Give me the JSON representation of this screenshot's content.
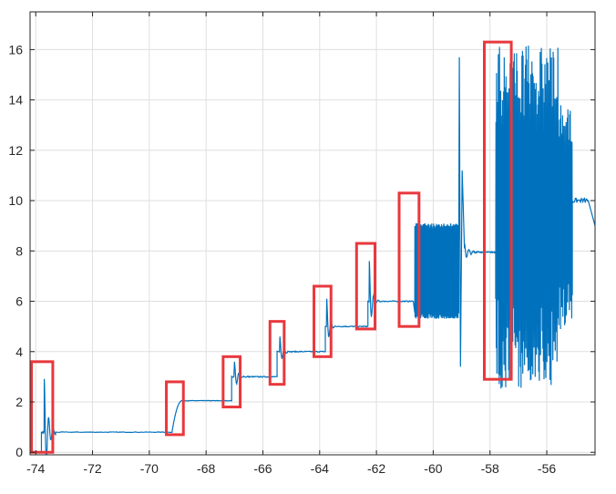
{
  "chart_data": {
    "type": "line",
    "title": "",
    "xlabel": "",
    "ylabel": "",
    "xlim": [
      -74.2,
      -54.3
    ],
    "ylim": [
      -0.1,
      17.5
    ],
    "grid": true,
    "xticks": [
      -74,
      -72,
      -70,
      -68,
      -66,
      -64,
      -62,
      -60,
      -58,
      -56
    ],
    "yticks": [
      0,
      2,
      4,
      6,
      8,
      10,
      12,
      14,
      16
    ],
    "xtick_labels": [
      "-74",
      "-72",
      "-70",
      "-68",
      "-66",
      "-64",
      "-62",
      "-60",
      "-58",
      "-56"
    ],
    "ytick_labels": [
      "0",
      "2",
      "4",
      "6",
      "8",
      "10",
      "12",
      "14",
      "16"
    ],
    "line_color": "#0072BD",
    "highlight_color": "#E8383D",
    "series": [
      {
        "segments": [
          {
            "x0": -74.2,
            "x1": -73.8,
            "value": 0.0,
            "noise": 0.02
          },
          {
            "x0": -73.8,
            "x1": -73.3,
            "value": 0.8,
            "spike_x": -73.7,
            "spike_peak": 2.9,
            "decay": 0.12
          },
          {
            "x0": -73.3,
            "x1": -69.2,
            "value": 0.8,
            "noise": 0.02
          },
          {
            "x0": -69.2,
            "x1": -68.85,
            "ramp_from": 0.8,
            "value": 2.05
          },
          {
            "x0": -68.85,
            "x1": -67.1,
            "value": 2.05,
            "noise": 0.02
          },
          {
            "x0": -67.1,
            "x1": -65.5,
            "value": 3.0,
            "spike_x": -67.0,
            "spike_peak": 3.6,
            "decay": 0.1
          },
          {
            "x0": -65.5,
            "x1": -63.8,
            "value": 4.0,
            "spike_x": -65.4,
            "spike_peak": 4.6,
            "decay": 0.1
          },
          {
            "x0": -63.8,
            "x1": -62.3,
            "value": 5.0,
            "spike_x": -63.75,
            "spike_peak": 6.1,
            "decay": 0.08
          },
          {
            "x0": -62.3,
            "x1": -60.7,
            "value": 6.0,
            "spike_x": -62.25,
            "spike_peak": 7.6,
            "decay": 0.08
          },
          {
            "x0": -60.65,
            "x1": -59.1,
            "oscillate": true,
            "low": 5.3,
            "high": 9.1
          },
          {
            "x0": -59.1,
            "x1": -58.9,
            "spikes": [
              [
                -59.08,
                15.7
              ],
              [
                -59.04,
                3.4
              ],
              [
                -58.98,
                11.2
              ]
            ]
          },
          {
            "x0": -58.9,
            "x1": -57.8,
            "value": 7.95,
            "spike_x": -58.9,
            "spike_peak": 8.3,
            "decay": 0.15
          },
          {
            "x0": -57.8,
            "x1": -55.1,
            "oscillate_wide": true,
            "low": 2.5,
            "high": 16.2
          },
          {
            "x0": -55.1,
            "x1": -54.3,
            "value": 10.0,
            "tail_to": 9.0
          }
        ]
      }
    ],
    "highlight_boxes": [
      {
        "x0": -74.15,
        "x1": -73.4,
        "y0": 0.0,
        "y1": 3.6
      },
      {
        "x0": -69.4,
        "x1": -68.8,
        "y0": 0.7,
        "y1": 2.8
      },
      {
        "x0": -67.4,
        "x1": -66.8,
        "y0": 1.8,
        "y1": 3.8
      },
      {
        "x0": -65.75,
        "x1": -65.25,
        "y0": 2.7,
        "y1": 5.2
      },
      {
        "x0": -64.2,
        "x1": -63.6,
        "y0": 3.8,
        "y1": 6.6
      },
      {
        "x0": -62.7,
        "x1": -62.05,
        "y0": 4.9,
        "y1": 8.3
      },
      {
        "x0": -61.2,
        "x1": -60.5,
        "y0": 5.0,
        "y1": 10.3
      },
      {
        "x0": -58.2,
        "x1": -57.25,
        "y0": 2.9,
        "y1": 16.3
      }
    ]
  }
}
